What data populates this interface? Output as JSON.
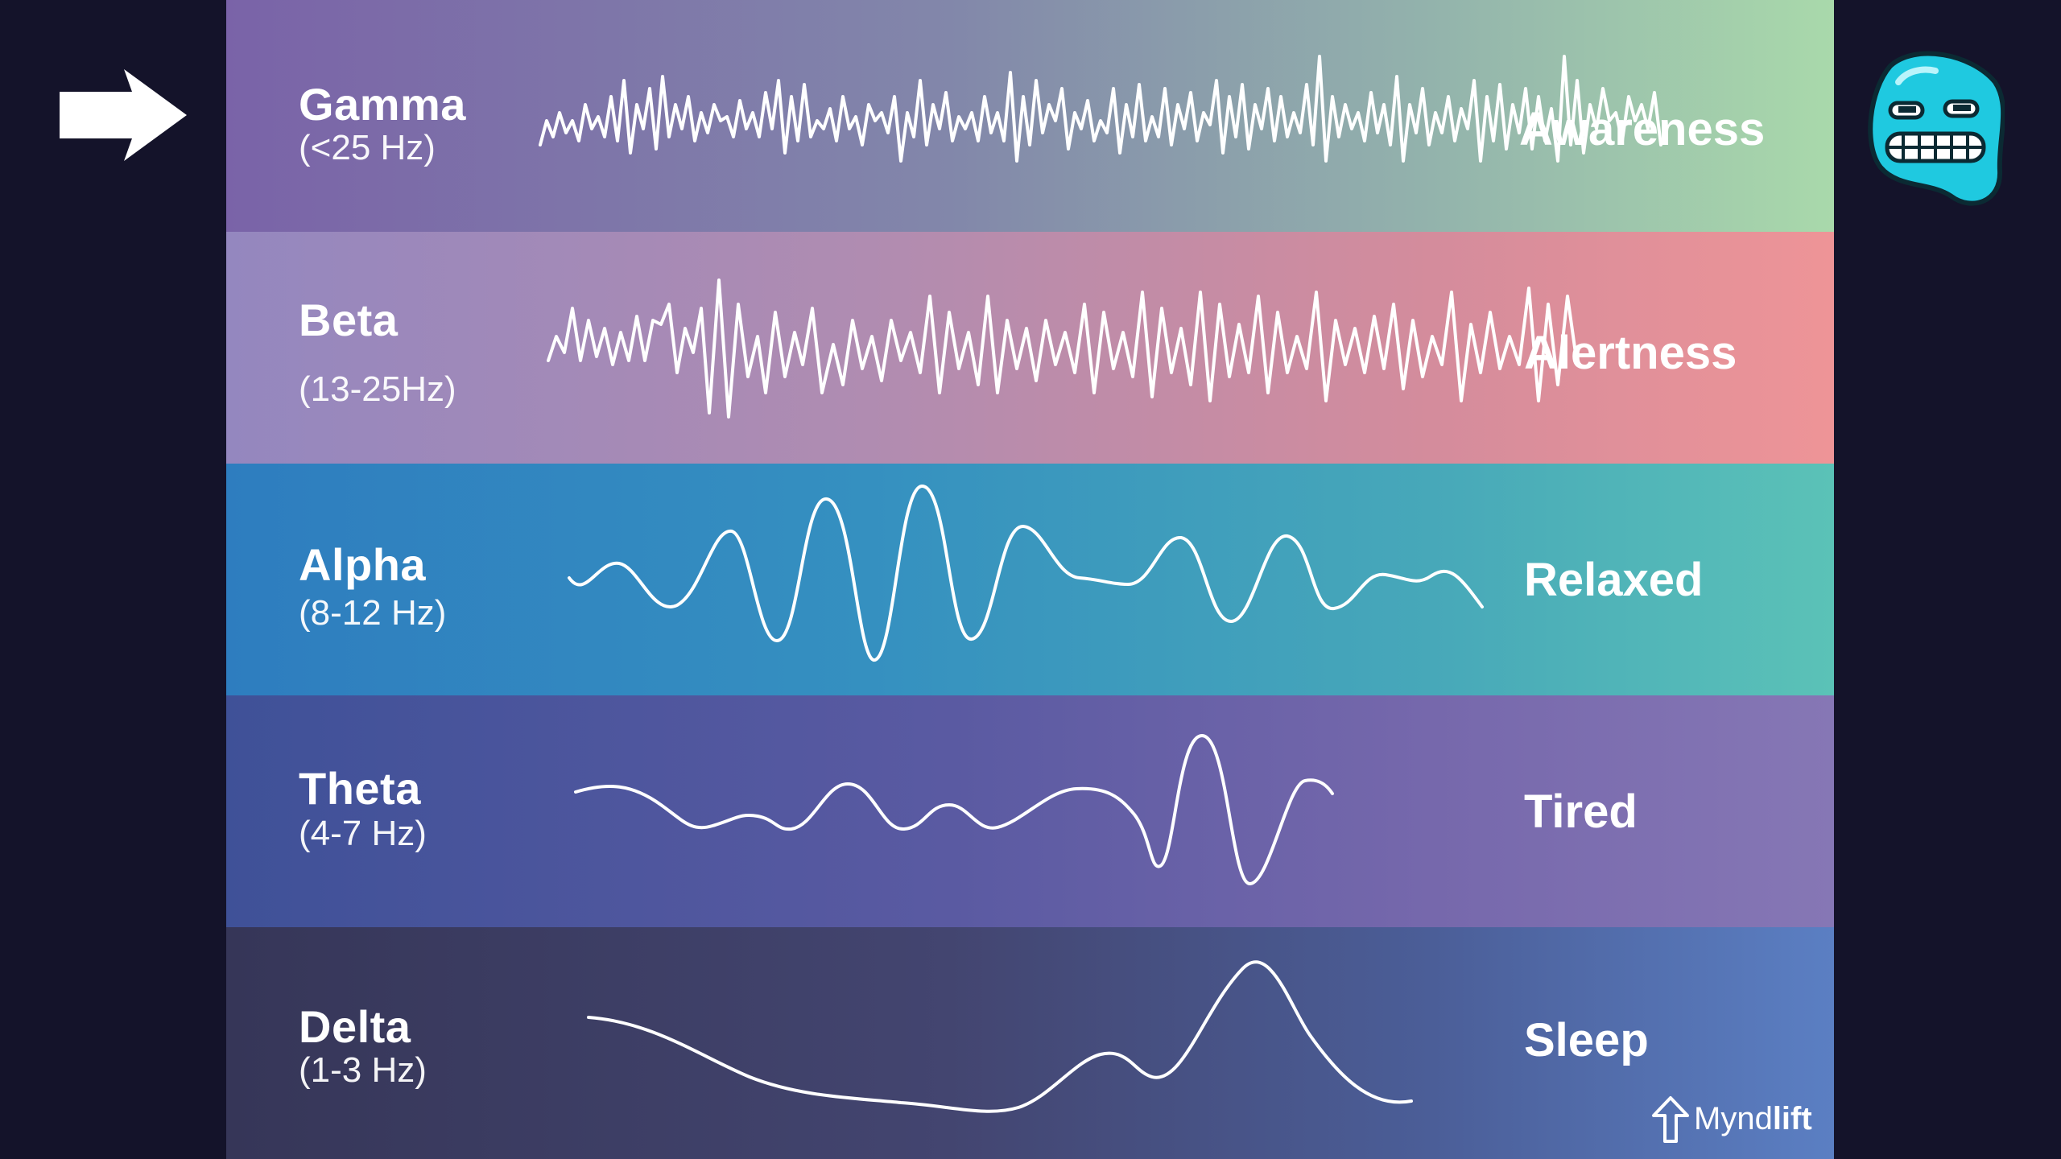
{
  "bands": [
    {
      "name": "Gamma",
      "range": "(<25 Hz)",
      "state": "Awareness"
    },
    {
      "name": "Beta",
      "range": "(13-25Hz)",
      "state": "Alertness"
    },
    {
      "name": "Alpha",
      "range": "(8-12 Hz)",
      "state": "Relaxed"
    },
    {
      "name": "Theta",
      "range": "(4-7 Hz)",
      "state": "Tired"
    },
    {
      "name": "Delta",
      "range": "(1-3 Hz)",
      "state": "Sleep"
    }
  ],
  "brand": {
    "name_light": "Mynd",
    "name_bold": "lift",
    "icon": "arrow-up-icon"
  },
  "decorations": {
    "left_icon": "arrow-right-icon",
    "right_icon": "grimace-blob-mascot-icon"
  },
  "colors": {
    "background": "#14132a",
    "gamma": "#7a63a8",
    "beta": "#ee9497",
    "alpha": "#2e7dbf",
    "theta": "#5a5aa2",
    "delta": "#434570"
  }
}
